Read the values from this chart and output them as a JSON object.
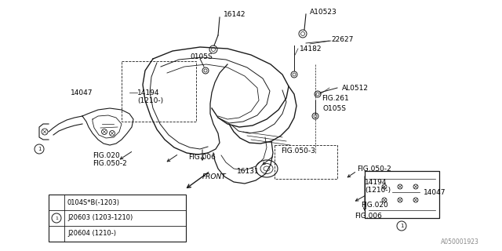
{
  "bg_color": "#ffffff",
  "line_color": "#1a1a1a",
  "label_color": "#000000",
  "fig_width": 6.4,
  "fig_height": 3.2,
  "dpi": 100,
  "watermark": "A050001923",
  "legend_rows": [
    {
      "circle": false,
      "text": "0104S*B(-1203)"
    },
    {
      "circle": true,
      "text": "J20603 (1203-1210)"
    },
    {
      "circle": false,
      "text": "J20604 (1210-)"
    }
  ]
}
